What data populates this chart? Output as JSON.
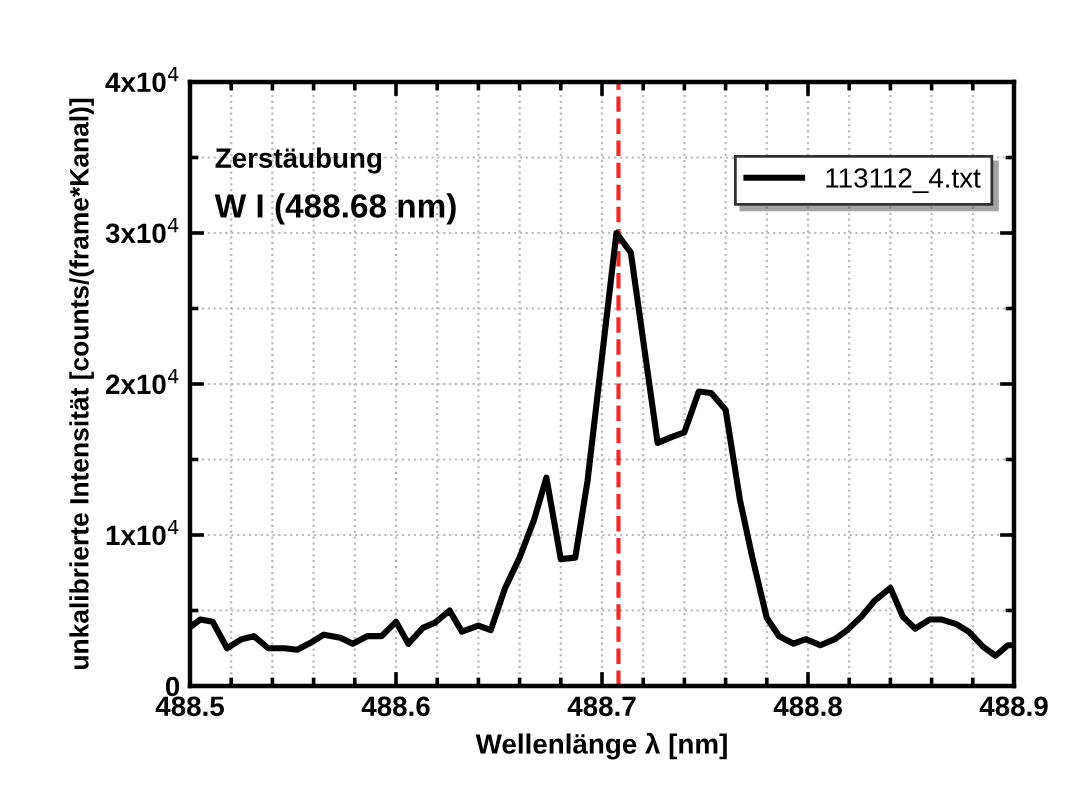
{
  "chart_data": {
    "type": "line",
    "xlabel": "Wellenlänge λ [nm]",
    "ylabel": "unkalibrierte Intensität [counts/(frame*Kanal)]",
    "annotations": [
      "Zerstäubung",
      "W I (488.68 nm)"
    ],
    "x": [
      488.5,
      488.505,
      488.511,
      488.518,
      488.525,
      488.531,
      488.538,
      488.546,
      488.552,
      488.559,
      488.565,
      488.573,
      488.579,
      488.586,
      488.593,
      488.6,
      488.606,
      488.613,
      488.619,
      488.626,
      488.632,
      488.64,
      488.646,
      488.653,
      488.66,
      488.667,
      488.673,
      488.68,
      488.687,
      488.693,
      488.707,
      488.714,
      488.727,
      488.734,
      488.74,
      488.747,
      488.753,
      488.76,
      488.767,
      488.773,
      488.78,
      488.786,
      488.793,
      488.799,
      488.806,
      488.813,
      488.819,
      488.826,
      488.832,
      488.84,
      488.846,
      488.852,
      488.859,
      488.865,
      488.872,
      488.878,
      488.885,
      488.891,
      488.897,
      488.9
    ],
    "series": [
      {
        "name": "113112_4.txt",
        "color": "#000000",
        "values": [
          3900,
          4400,
          4250,
          2500,
          3100,
          3300,
          2500,
          2500,
          2400,
          2900,
          3400,
          3200,
          2800,
          3300,
          3300,
          4250,
          2800,
          3850,
          4200,
          5000,
          3600,
          4000,
          3700,
          6500,
          8500,
          11000,
          13800,
          8400,
          8500,
          13600,
          30000,
          28700,
          16100,
          16500,
          16800,
          19500,
          19400,
          18300,
          12300,
          8500,
          4500,
          3300,
          2800,
          3100,
          2700,
          3100,
          3700,
          4600,
          5600,
          6500,
          4600,
          3800,
          4400,
          4400,
          4100,
          3600,
          2600,
          2000,
          2700,
          2700
        ]
      }
    ],
    "xlim": [
      488.5,
      488.9
    ],
    "xticks": [
      488.5,
      488.6,
      488.7,
      488.8,
      488.9
    ],
    "ylim": [
      0,
      40000
    ],
    "yticks": [
      0,
      {
        "value": 10000,
        "label": "1x10$^{4}$"
      },
      {
        "value": 20000,
        "label": "2x10$^{4}$"
      },
      {
        "value": 30000,
        "label": "3x10$^{4}$"
      },
      {
        "value": 40000,
        "label": "4x10$^{4}$"
      }
    ],
    "ref_lines": [
      {
        "axis": "x",
        "value": 488.708,
        "label": null,
        "color": "#ee2a2a",
        "line_style": "dashed"
      }
    ],
    "grid": true,
    "legend": "top right",
    "line_style": "solid",
    "marker": "none"
  }
}
